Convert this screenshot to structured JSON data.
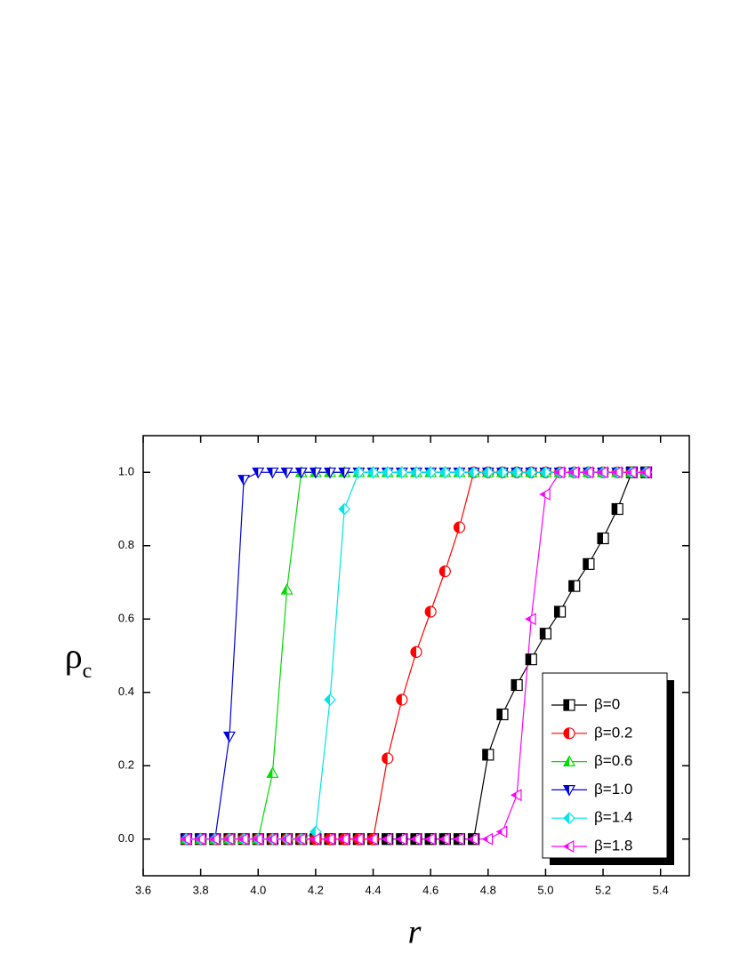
{
  "chart_data": {
    "type": "line",
    "x_label": "r",
    "y_label": "ρ",
    "y_label_subscript": "c",
    "x": [
      3.75,
      3.8,
      3.85,
      3.9,
      3.95,
      4.0,
      4.05,
      4.1,
      4.15,
      4.2,
      4.25,
      4.3,
      4.35,
      4.4,
      4.45,
      4.5,
      4.55,
      4.6,
      4.65,
      4.7,
      4.75,
      4.8,
      4.85,
      4.9,
      4.95,
      5.0,
      5.05,
      5.1,
      5.15,
      5.2,
      5.25,
      5.3,
      5.35
    ],
    "series": [
      {
        "name": "β=0",
        "color": "#000000",
        "marker": "square",
        "values": [
          0,
          0,
          0,
          0,
          0,
          0,
          0,
          0,
          0,
          0,
          0,
          0,
          0,
          0,
          0,
          0,
          0,
          0,
          0,
          0,
          0,
          0.23,
          0.34,
          0.42,
          0.49,
          0.56,
          0.62,
          0.69,
          0.75,
          0.82,
          0.9,
          1.0,
          1.0
        ]
      },
      {
        "name": "β=0.2",
        "color": "#ff0000",
        "marker": "circle",
        "values": [
          0,
          0,
          0,
          0,
          0,
          0,
          0,
          0,
          0,
          0,
          0,
          0,
          0,
          0,
          0.22,
          0.38,
          0.51,
          0.62,
          0.73,
          0.85,
          1.0,
          1.0,
          1.0,
          1.0,
          1.0,
          1.0,
          1.0,
          1.0,
          1.0,
          1.0,
          1.0,
          1.0,
          1.0
        ]
      },
      {
        "name": "β=0.6",
        "color": "#00dd00",
        "marker": "triangle-up",
        "values": [
          0,
          0,
          0,
          0,
          0,
          0,
          0.18,
          0.68,
          1.0,
          1.0,
          1.0,
          1.0,
          1.0,
          1.0,
          1.0,
          1.0,
          1.0,
          1.0,
          1.0,
          1.0,
          1.0,
          1.0,
          1.0,
          1.0,
          1.0,
          1.0,
          1.0,
          1.0,
          1.0,
          1.0,
          1.0,
          1.0,
          1.0
        ]
      },
      {
        "name": "β=1.0",
        "color": "#0000dd",
        "marker": "triangle-down",
        "values": [
          0,
          0,
          0,
          0.28,
          0.98,
          1.0,
          1.0,
          1.0,
          1.0,
          1.0,
          1.0,
          1.0,
          1.0,
          1.0,
          1.0,
          1.0,
          1.0,
          1.0,
          1.0,
          1.0,
          1.0,
          1.0,
          1.0,
          1.0,
          1.0,
          1.0,
          1.0,
          1.0,
          1.0,
          1.0,
          1.0,
          1.0,
          1.0
        ]
      },
      {
        "name": "β=1.4",
        "color": "#00e5e5",
        "marker": "diamond",
        "values": [
          0,
          0,
          0,
          0,
          0,
          0,
          0,
          0,
          0,
          0.02,
          0.38,
          0.9,
          1.0,
          1.0,
          1.0,
          1.0,
          1.0,
          1.0,
          1.0,
          1.0,
          1.0,
          1.0,
          1.0,
          1.0,
          1.0,
          1.0,
          1.0,
          1.0,
          1.0,
          1.0,
          1.0,
          1.0,
          1.0
        ]
      },
      {
        "name": "β=1.8",
        "color": "#ff00ff",
        "marker": "triangle-left",
        "values": [
          0,
          0,
          0,
          0,
          0,
          0,
          0,
          0,
          0,
          0,
          0,
          0,
          0,
          0,
          0,
          0,
          0,
          0,
          0,
          0,
          0,
          0,
          0.02,
          0.12,
          0.6,
          0.94,
          1.0,
          1.0,
          1.0,
          1.0,
          1.0,
          1.0,
          1.0
        ]
      }
    ],
    "xlim": [
      3.6,
      5.5
    ],
    "xticks": [
      3.6,
      3.8,
      {
        "value": 4.0,
        "label": "4.0"
      },
      4.2,
      4.4,
      4.6,
      4.8,
      {
        "value": 5.0,
        "label": "5.0"
      },
      5.2,
      5.4
    ],
    "ylim": [
      -0.1,
      1.1
    ],
    "yticks": [
      {
        "value": 0,
        "label": "0.0"
      },
      {
        "value": 0.2,
        "label": "0.2"
      },
      {
        "value": 0.4,
        "label": "0.4"
      },
      {
        "value": 0.6,
        "label": "0.6"
      },
      {
        "value": 0.8,
        "label": "0.8"
      },
      {
        "value": 1.0,
        "label": "1.0"
      }
    ],
    "legend": "lower right"
  }
}
